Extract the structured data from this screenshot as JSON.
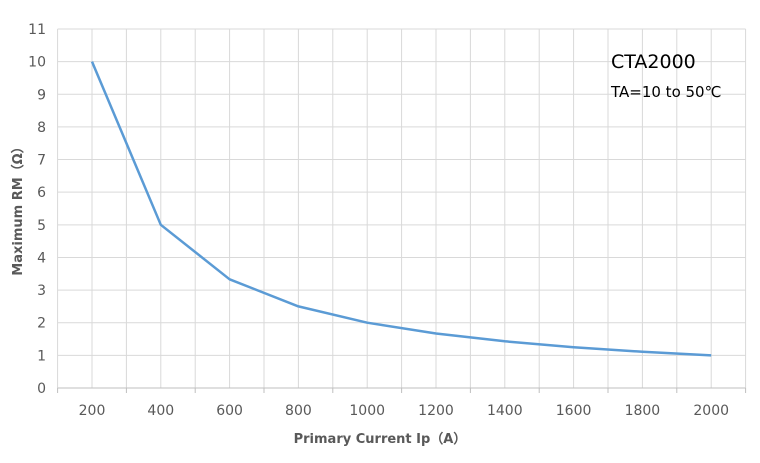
{
  "chart_data": {
    "type": "line",
    "title": "",
    "xlabel": "Primary Current Ip（A）",
    "ylabel": "Maximum RM（Ω）",
    "xlim": [
      100,
      2100
    ],
    "ylim": [
      0,
      11
    ],
    "grid": true,
    "x_ticks": [
      200,
      400,
      600,
      800,
      1000,
      1200,
      1400,
      1600,
      1800,
      2000
    ],
    "y_ticks": [
      0,
      1,
      2,
      3,
      4,
      5,
      6,
      7,
      8,
      9,
      10,
      11
    ],
    "series": [
      {
        "name": "CTA2000",
        "color": "#5b9bd5",
        "x": [
          200,
          400,
          600,
          800,
          1000,
          1200,
          1400,
          1600,
          1800,
          2000
        ],
        "y": [
          10,
          5,
          3.33,
          2.5,
          2,
          1.67,
          1.43,
          1.25,
          1.11,
          1
        ]
      }
    ],
    "annotations": [
      "CTA2000",
      "TA=10 to 50℃"
    ]
  }
}
